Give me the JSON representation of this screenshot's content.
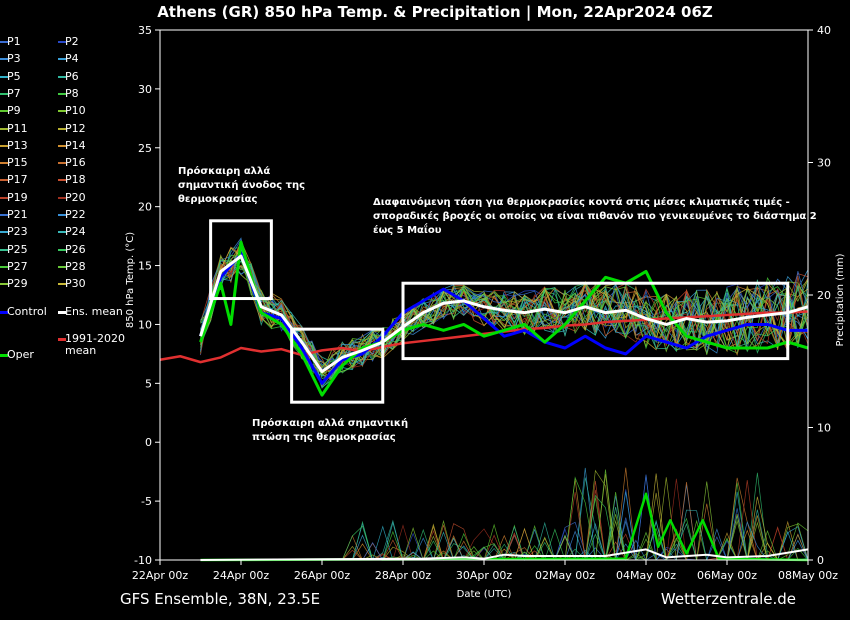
{
  "title": "Athens  (GR)  850 hPa Temp. & Precipitation | Mon, 22Apr2024 06Z",
  "footer_left": "GFS Ensemble, 38N, 23.5E",
  "footer_right": "Wetterzentrale.de",
  "colors": {
    "background": "#000000",
    "control": "#0000ff",
    "ens_mean": "#ffffff",
    "climate_mean": "#e03030",
    "oper": "#00dd00"
  },
  "legend": [
    {
      "label": "P1",
      "color": "#3a6cd0"
    },
    {
      "label": "P2",
      "color": "#2848c8"
    },
    {
      "label": "P3",
      "color": "#3c8cd8"
    },
    {
      "label": "P4",
      "color": "#3aa0d8"
    },
    {
      "label": "P5",
      "color": "#30b0c8"
    },
    {
      "label": "P6",
      "color": "#30b8a0"
    },
    {
      "label": "P7",
      "color": "#30c070"
    },
    {
      "label": "P8",
      "color": "#40c840"
    },
    {
      "label": "P9",
      "color": "#60c830"
    },
    {
      "label": "P10",
      "color": "#80c830"
    },
    {
      "label": "P11",
      "color": "#a0b830"
    },
    {
      "label": "P12",
      "color": "#b8b030"
    },
    {
      "label": "P13",
      "color": "#c8a030"
    },
    {
      "label": "P14",
      "color": "#d09030"
    },
    {
      "label": "P15",
      "color": "#d08030"
    },
    {
      "label": "P16",
      "color": "#c87030"
    },
    {
      "label": "P17",
      "color": "#c86030"
    },
    {
      "label": "P18",
      "color": "#c85030"
    },
    {
      "label": "P19",
      "color": "#b84028"
    },
    {
      "label": "P20",
      "color": "#a03020"
    },
    {
      "label": "P21",
      "color": "#3870d0"
    },
    {
      "label": "P22",
      "color": "#3890d8"
    },
    {
      "label": "P23",
      "color": "#38a8d0"
    },
    {
      "label": "P24",
      "color": "#38b8b8"
    },
    {
      "label": "P25",
      "color": "#38c090"
    },
    {
      "label": "P26",
      "color": "#38c860"
    },
    {
      "label": "P27",
      "color": "#48c838"
    },
    {
      "label": "P28",
      "color": "#68c838"
    },
    {
      "label": "P29",
      "color": "#88c838"
    },
    {
      "label": "P30",
      "color": "#c8b838"
    }
  ],
  "legend_special": {
    "control": "Control",
    "ens_mean": "Ens. mean",
    "climate_1": "1991-2020",
    "climate_2": "mean",
    "oper": "Oper"
  },
  "chart_data": {
    "type": "line",
    "xlabel": "Date (UTC)",
    "ylabel": "850 hPa Temp. (°C)",
    "y2label": "Precipitation (mm)",
    "ylim": [
      -10,
      35
    ],
    "y2lim": [
      0,
      40
    ],
    "xlim_days": [
      0,
      16
    ],
    "y_ticks": [
      -10,
      -5,
      0,
      5,
      10,
      15,
      20,
      25,
      30,
      35
    ],
    "y2_ticks": [
      0,
      10,
      20,
      30,
      40
    ],
    "x_ticks": [
      "22Apr 00z",
      "24Apr 00z",
      "26Apr 00z",
      "28Apr 00z",
      "30Apr 00z",
      "02May 00z",
      "04May 00z",
      "06May 00z",
      "08May 00z"
    ],
    "x_tick_days": [
      0,
      2,
      4,
      6,
      8,
      10,
      12,
      14,
      16
    ],
    "grid": false,
    "legend_position": "left-outside",
    "ens_mean": [
      {
        "x": 1.0,
        "y": 9
      },
      {
        "x": 1.5,
        "y": 14.5
      },
      {
        "x": 2.0,
        "y": 15.8
      },
      {
        "x": 2.5,
        "y": 11.5
      },
      {
        "x": 3.0,
        "y": 10.8
      },
      {
        "x": 3.5,
        "y": 8.5
      },
      {
        "x": 4.0,
        "y": 6.0
      },
      {
        "x": 4.5,
        "y": 7.2
      },
      {
        "x": 5.0,
        "y": 7.8
      },
      {
        "x": 5.5,
        "y": 8.5
      },
      {
        "x": 6.0,
        "y": 9.8
      },
      {
        "x": 6.5,
        "y": 11.0
      },
      {
        "x": 7.0,
        "y": 11.8
      },
      {
        "x": 7.5,
        "y": 12.0
      },
      {
        "x": 8.0,
        "y": 11.5
      },
      {
        "x": 8.5,
        "y": 11.2
      },
      {
        "x": 9.0,
        "y": 11.0
      },
      {
        "x": 9.5,
        "y": 11.3
      },
      {
        "x": 10.0,
        "y": 11.0
      },
      {
        "x": 10.5,
        "y": 11.5
      },
      {
        "x": 11.0,
        "y": 11.0
      },
      {
        "x": 11.5,
        "y": 11.2
      },
      {
        "x": 12.0,
        "y": 10.5
      },
      {
        "x": 12.5,
        "y": 10.0
      },
      {
        "x": 13.0,
        "y": 10.5
      },
      {
        "x": 13.5,
        "y": 10.2
      },
      {
        "x": 14.0,
        "y": 10.3
      },
      {
        "x": 14.5,
        "y": 10.6
      },
      {
        "x": 15.0,
        "y": 10.8
      },
      {
        "x": 15.5,
        "y": 11.0
      },
      {
        "x": 16.0,
        "y": 11.5
      }
    ],
    "control": [
      {
        "x": 1.0,
        "y": 9
      },
      {
        "x": 1.5,
        "y": 14
      },
      {
        "x": 2.0,
        "y": 16
      },
      {
        "x": 2.5,
        "y": 11
      },
      {
        "x": 3.0,
        "y": 10.5
      },
      {
        "x": 3.5,
        "y": 8.0
      },
      {
        "x": 4.0,
        "y": 5.0
      },
      {
        "x": 4.5,
        "y": 7.0
      },
      {
        "x": 5.0,
        "y": 7.5
      },
      {
        "x": 5.5,
        "y": 9.0
      },
      {
        "x": 6.0,
        "y": 11.0
      },
      {
        "x": 6.5,
        "y": 12.0
      },
      {
        "x": 7.0,
        "y": 13.0
      },
      {
        "x": 7.5,
        "y": 12.0
      },
      {
        "x": 8.0,
        "y": 10.5
      },
      {
        "x": 8.5,
        "y": 9.0
      },
      {
        "x": 9.0,
        "y": 9.5
      },
      {
        "x": 9.5,
        "y": 8.5
      },
      {
        "x": 10.0,
        "y": 8.0
      },
      {
        "x": 10.5,
        "y": 9.0
      },
      {
        "x": 11.0,
        "y": 8.0
      },
      {
        "x": 11.5,
        "y": 7.5
      },
      {
        "x": 12.0,
        "y": 9.0
      },
      {
        "x": 12.5,
        "y": 8.5
      },
      {
        "x": 13.0,
        "y": 8.0
      },
      {
        "x": 13.5,
        "y": 9.0
      },
      {
        "x": 14.0,
        "y": 9.5
      },
      {
        "x": 14.5,
        "y": 10.0
      },
      {
        "x": 15.0,
        "y": 10.0
      },
      {
        "x": 15.5,
        "y": 9.5
      },
      {
        "x": 16.0,
        "y": 9.5
      }
    ],
    "oper": [
      {
        "x": 1.0,
        "y": 8.5
      },
      {
        "x": 1.5,
        "y": 13.5
      },
      {
        "x": 1.75,
        "y": 10
      },
      {
        "x": 2.0,
        "y": 17
      },
      {
        "x": 2.5,
        "y": 11
      },
      {
        "x": 3.0,
        "y": 10
      },
      {
        "x": 3.5,
        "y": 7.5
      },
      {
        "x": 4.0,
        "y": 4.0
      },
      {
        "x": 4.5,
        "y": 6.5
      },
      {
        "x": 5.0,
        "y": 8.0
      },
      {
        "x": 5.5,
        "y": 8.5
      },
      {
        "x": 6.0,
        "y": 9.5
      },
      {
        "x": 6.5,
        "y": 10.0
      },
      {
        "x": 7.0,
        "y": 9.5
      },
      {
        "x": 7.5,
        "y": 10.0
      },
      {
        "x": 8.0,
        "y": 9.0
      },
      {
        "x": 8.5,
        "y": 9.5
      },
      {
        "x": 9.0,
        "y": 10.0
      },
      {
        "x": 9.5,
        "y": 8.5
      },
      {
        "x": 10.0,
        "y": 10.0
      },
      {
        "x": 10.5,
        "y": 12.0
      },
      {
        "x": 11.0,
        "y": 14.0
      },
      {
        "x": 11.5,
        "y": 13.5
      },
      {
        "x": 12.0,
        "y": 14.5
      },
      {
        "x": 12.5,
        "y": 11.0
      },
      {
        "x": 13.0,
        "y": 9.0
      },
      {
        "x": 13.5,
        "y": 8.5
      },
      {
        "x": 14.0,
        "y": 8.0
      },
      {
        "x": 14.5,
        "y": 8.0
      },
      {
        "x": 15.0,
        "y": 8.0
      },
      {
        "x": 15.5,
        "y": 8.5
      },
      {
        "x": 16.0,
        "y": 8.0
      }
    ],
    "climate_mean": [
      {
        "x": 0.0,
        "y": 7.0
      },
      {
        "x": 0.5,
        "y": 7.3
      },
      {
        "x": 1.0,
        "y": 6.8
      },
      {
        "x": 1.5,
        "y": 7.2
      },
      {
        "x": 2.0,
        "y": 8.0
      },
      {
        "x": 2.5,
        "y": 7.7
      },
      {
        "x": 3.0,
        "y": 7.9
      },
      {
        "x": 3.5,
        "y": 7.4
      },
      {
        "x": 4.0,
        "y": 7.8
      },
      {
        "x": 4.5,
        "y": 8.0
      },
      {
        "x": 5.0,
        "y": 7.7
      },
      {
        "x": 5.5,
        "y": 8.1
      },
      {
        "x": 6.0,
        "y": 8.4
      },
      {
        "x": 6.5,
        "y": 8.6
      },
      {
        "x": 7.0,
        "y": 8.8
      },
      {
        "x": 7.5,
        "y": 9.0
      },
      {
        "x": 8.0,
        "y": 9.2
      },
      {
        "x": 8.5,
        "y": 9.4
      },
      {
        "x": 9.0,
        "y": 9.6
      },
      {
        "x": 9.5,
        "y": 9.7
      },
      {
        "x": 10.0,
        "y": 9.9
      },
      {
        "x": 10.5,
        "y": 10.0
      },
      {
        "x": 11.0,
        "y": 10.2
      },
      {
        "x": 11.5,
        "y": 10.3
      },
      {
        "x": 12.0,
        "y": 10.4
      },
      {
        "x": 12.5,
        "y": 10.5
      },
      {
        "x": 13.0,
        "y": 10.6
      },
      {
        "x": 13.5,
        "y": 10.7
      },
      {
        "x": 14.0,
        "y": 10.8
      },
      {
        "x": 14.5,
        "y": 10.9
      },
      {
        "x": 15.0,
        "y": 11.0
      },
      {
        "x": 15.5,
        "y": 11.0
      },
      {
        "x": 16.0,
        "y": 11.1
      }
    ],
    "precipitation_mean": [
      {
        "x": 6.5,
        "y": 0.1
      },
      {
        "x": 7.5,
        "y": 0.2
      },
      {
        "x": 8.0,
        "y": 0.1
      },
      {
        "x": 8.5,
        "y": 0.4
      },
      {
        "x": 9.0,
        "y": 0.3
      },
      {
        "x": 10.0,
        "y": 0.3
      },
      {
        "x": 11.0,
        "y": 0.3
      },
      {
        "x": 12.0,
        "y": 0.8
      },
      {
        "x": 12.5,
        "y": 0.2
      },
      {
        "x": 13.5,
        "y": 0.4
      },
      {
        "x": 14.0,
        "y": 0.2
      },
      {
        "x": 15.0,
        "y": 0.3
      },
      {
        "x": 16.0,
        "y": 0.8
      }
    ],
    "precipitation_oper": [
      {
        "x": 11.5,
        "y": 0.1
      },
      {
        "x": 12.0,
        "y": 5.0
      },
      {
        "x": 12.3,
        "y": 1.0
      },
      {
        "x": 12.6,
        "y": 3.0
      },
      {
        "x": 13.0,
        "y": 0.5
      },
      {
        "x": 13.4,
        "y": 3.0
      },
      {
        "x": 13.8,
        "y": 0.1
      }
    ],
    "annotations": [
      {
        "text": [
          "Πρόσκαιρη αλλά",
          "σημαντική άνοδος της",
          "θερμοκρασίας"
        ]
      },
      {
        "text": [
          "Πρόσκαιρη αλλά σημαντική",
          "πτώση της θερμοκρασίας"
        ]
      },
      {
        "text": [
          "Διαφαινόμενη τάση για θερμοκρασίες κοντά στις μέσες κλιματικές τιμές -",
          "σποραδικές βροχές οι οποίες να είναι πιθανόν πιο γενικευμένες το διάστημα 2",
          "έως 5 Μαΐου"
        ]
      }
    ],
    "highlight_boxes": [
      {
        "x0": 1.25,
        "x1": 2.75,
        "y0": 12.2,
        "y1": 18.8
      },
      {
        "x0": 3.25,
        "x1": 5.5,
        "y0": 3.4,
        "y1": 9.6
      },
      {
        "x0": 6.0,
        "x1": 15.5,
        "y0": 7.1,
        "y1": 13.5
      }
    ]
  }
}
